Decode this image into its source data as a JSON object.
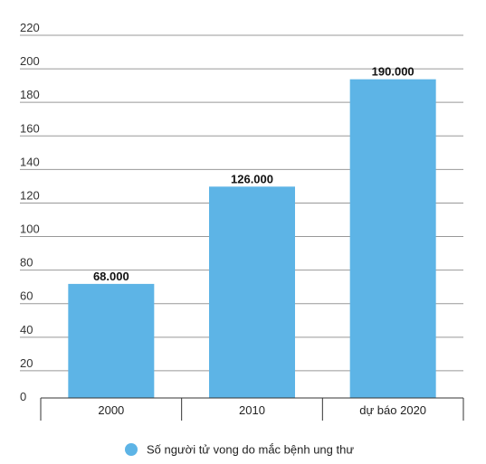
{
  "chart_data": {
    "type": "bar",
    "title": "",
    "xlabel": "",
    "ylabel": "",
    "categories": [
      "2000",
      "2010",
      "dự báo 2020"
    ],
    "series": [
      {
        "name": "Số người tử vong do mắc bệnh ung thư",
        "values": [
          68,
          126,
          190
        ],
        "data_labels": [
          "68.000",
          "126.000",
          "190.000"
        ],
        "color": "#5db4e6"
      }
    ],
    "yticks": [
      "0",
      "20",
      "40",
      "60",
      "80",
      "100",
      "120",
      "140",
      "160",
      "180",
      "200",
      "220"
    ],
    "ylim": [
      0,
      220
    ],
    "grid": true,
    "legend_position": "bottom-center",
    "colors": {
      "bar": "#5db4e6",
      "grid": "#999999",
      "axis": "#333333"
    }
  }
}
